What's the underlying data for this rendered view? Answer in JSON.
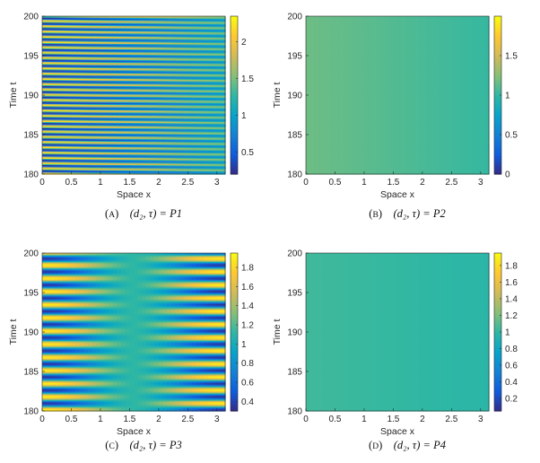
{
  "colors": {
    "parula_stops": [
      "#352a87",
      "#0f5cdd",
      "#1481d6",
      "#06a4ca",
      "#2eb7a4",
      "#87bf77",
      "#d1bb59",
      "#fec832",
      "#f9fb0e"
    ]
  },
  "chart_data": [
    {
      "type": "heatmap",
      "panel": "A",
      "caption": {
        "letter": "A",
        "text": "(d₂, τ) = P1"
      },
      "xlabel": "Space x",
      "ylabel": "Time t",
      "xlim": [
        0,
        3.14159
      ],
      "ylim": [
        180,
        200
      ],
      "xticks": [
        "0",
        "0.5",
        "1",
        "1.5",
        "2",
        "2.5",
        "3"
      ],
      "yticks": [
        "180",
        "185",
        "190",
        "195",
        "200"
      ],
      "clim": [
        0.2,
        2.35
      ],
      "cticks": [
        "0.5",
        "1",
        "1.5",
        "2"
      ],
      "pattern": {
        "kind": "oscillating",
        "bands": 30,
        "mean": 1.2,
        "amp_left": 1.05,
        "amp_right": 0.35,
        "phase_shift": 2.2
      }
    },
    {
      "type": "heatmap",
      "panel": "B",
      "caption": {
        "letter": "B",
        "text": "(d₂, τ) = P2"
      },
      "xlabel": "Space x",
      "ylabel": "Time t",
      "xlim": [
        0,
        3.14159
      ],
      "ylim": [
        180,
        200
      ],
      "xticks": [
        "0",
        "0.5",
        "1",
        "1.5",
        "2",
        "2.5",
        "3"
      ],
      "yticks": [
        "180",
        "185",
        "190",
        "195",
        "200"
      ],
      "clim": [
        0,
        2.0
      ],
      "cticks": [
        "0",
        "0.5",
        "1",
        "1.5"
      ],
      "pattern": {
        "kind": "steady",
        "left": 1.18,
        "right": 1.02
      }
    },
    {
      "type": "heatmap",
      "panel": "C",
      "caption": {
        "letter": "C",
        "text": "(d₂, τ) = P3"
      },
      "xlabel": "Space x",
      "ylabel": "Time t",
      "xlim": [
        0,
        3.14159
      ],
      "ylim": [
        180,
        200
      ],
      "xticks": [
        "0",
        "0.5",
        "1",
        "1.5",
        "2",
        "2.5",
        "3"
      ],
      "yticks": [
        "180",
        "185",
        "190",
        "195",
        "200"
      ],
      "clim": [
        0.3,
        1.95
      ],
      "cticks": [
        "0.4",
        "0.6",
        "0.8",
        "1",
        "1.2",
        "1.4",
        "1.6",
        "1.8"
      ],
      "pattern": {
        "kind": "standing",
        "bands": 12,
        "mean": 1.12,
        "amp": 0.78
      }
    },
    {
      "type": "heatmap",
      "panel": "D",
      "caption": {
        "letter": "D",
        "text": "(d₂, τ) = P4"
      },
      "xlabel": "Space x",
      "ylabel": "Time t",
      "xlim": [
        0,
        3.14159
      ],
      "ylim": [
        180,
        200
      ],
      "xticks": [
        "0",
        "0.5",
        "1",
        "1.5",
        "2",
        "2.5",
        "3"
      ],
      "yticks": [
        "180",
        "185",
        "190",
        "195",
        "200"
      ],
      "clim": [
        0.05,
        1.95
      ],
      "cticks": [
        "0.2",
        "0.4",
        "0.6",
        "0.8",
        "1",
        "1.2",
        "1.4",
        "1.6",
        "1.8"
      ],
      "pattern": {
        "kind": "steady",
        "left": 1.05,
        "right": 0.98
      }
    }
  ]
}
